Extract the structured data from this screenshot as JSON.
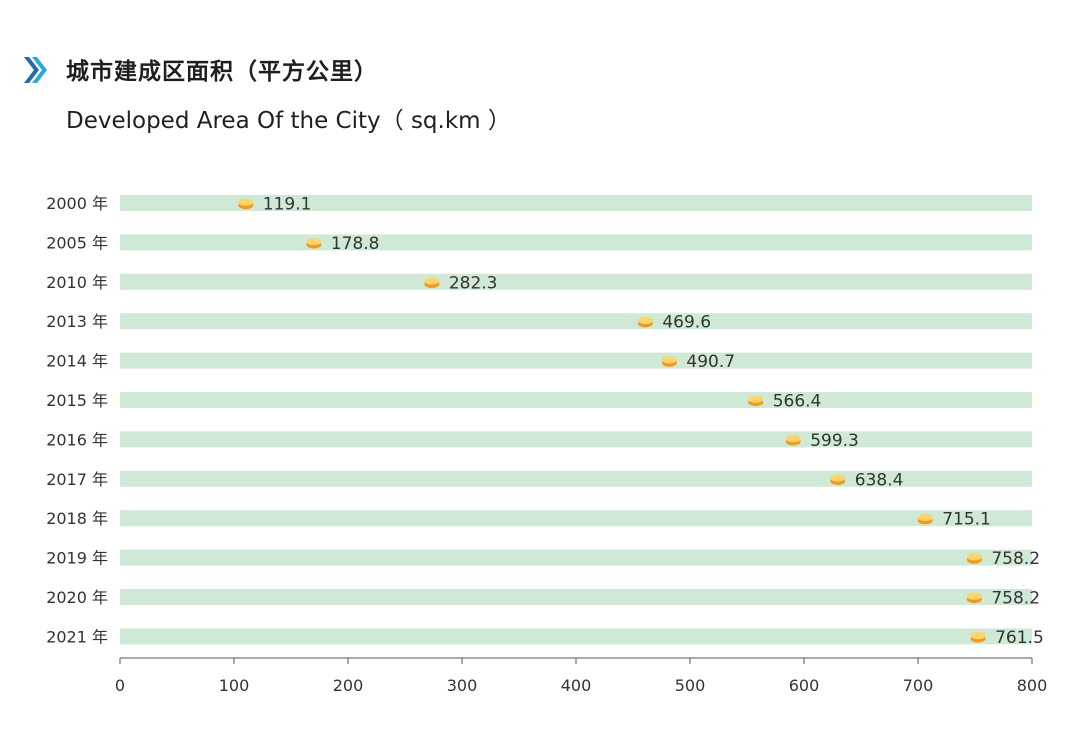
{
  "header": {
    "title_cn": "城市建成区面积（平方公里）",
    "title_en": "Developed Area Of the City（ sq.km ）"
  },
  "colors": {
    "track": "#cfe9d6",
    "marker_top": "#fbd46b",
    "marker_side": "#ef9b21",
    "icon_dark": "#1f6bb0",
    "icon_light": "#29a8e0",
    "text": "#333333"
  },
  "chart_data": {
    "type": "bar",
    "title": "城市建成区面积（平方公里）",
    "subtitle": "Developed Area Of the City（ sq.km ）",
    "xlabel": "",
    "ylabel": "",
    "xlim": [
      0,
      800
    ],
    "ticks": [
      0,
      100,
      200,
      300,
      400,
      500,
      600,
      700,
      800
    ],
    "categories": [
      "2000 年",
      "2005 年",
      "2010 年",
      "2013 年",
      "2014 年",
      "2015 年",
      "2016 年",
      "2017 年",
      "2018 年",
      "2019 年",
      "2020 年",
      "2021 年"
    ],
    "values": [
      119.1,
      178.8,
      282.3,
      469.6,
      490.7,
      566.4,
      599.3,
      638.4,
      715.1,
      758.2,
      758.2,
      761.5
    ],
    "value_labels": [
      "119.1",
      "178.8",
      "282.3",
      "469.6",
      "490.7",
      "566.4",
      "599.3",
      "638.4",
      "715.1",
      "758.2",
      "758.2",
      "761.5"
    ]
  }
}
